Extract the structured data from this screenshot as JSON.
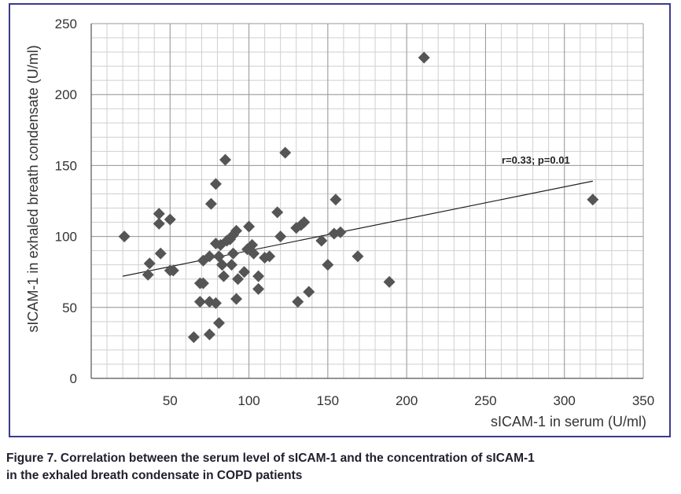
{
  "chart_data": {
    "type": "scatter",
    "xlabel": "sICAM-1 in serum (U/ml)",
    "ylabel": "sICAM-1 in exhaled breath condensate (U/ml)",
    "xlim": [
      0,
      350
    ],
    "ylim": [
      0,
      250
    ],
    "x_ticks": [
      50,
      100,
      150,
      200,
      250,
      300,
      350
    ],
    "y_ticks": [
      0,
      50,
      100,
      150,
      200,
      250
    ],
    "grid": true,
    "minor_grid": true,
    "marker": "diamond",
    "colors": {
      "marker": "#555555",
      "frame": "#3a3a8c",
      "grid_major": "#9a9a9a",
      "grid_minor": "#cfcfcf",
      "trend": "#222222"
    },
    "annotation": "r=0.33; p=0.01",
    "trendline": {
      "x": [
        20,
        318
      ],
      "y": [
        72,
        139
      ]
    },
    "points": [
      {
        "x": 21,
        "y": 100
      },
      {
        "x": 37,
        "y": 81
      },
      {
        "x": 36,
        "y": 73
      },
      {
        "x": 43,
        "y": 116
      },
      {
        "x": 43,
        "y": 109
      },
      {
        "x": 50,
        "y": 112
      },
      {
        "x": 44,
        "y": 88
      },
      {
        "x": 50,
        "y": 76
      },
      {
        "x": 52,
        "y": 76
      },
      {
        "x": 65,
        "y": 29
      },
      {
        "x": 69,
        "y": 67
      },
      {
        "x": 71,
        "y": 67
      },
      {
        "x": 69,
        "y": 54
      },
      {
        "x": 71,
        "y": 83
      },
      {
        "x": 75,
        "y": 86
      },
      {
        "x": 76,
        "y": 123
      },
      {
        "x": 79,
        "y": 137
      },
      {
        "x": 75,
        "y": 54
      },
      {
        "x": 79,
        "y": 53
      },
      {
        "x": 75,
        "y": 31
      },
      {
        "x": 81,
        "y": 39
      },
      {
        "x": 79,
        "y": 95
      },
      {
        "x": 82,
        "y": 94
      },
      {
        "x": 85,
        "y": 154
      },
      {
        "x": 84,
        "y": 72
      },
      {
        "x": 81,
        "y": 86
      },
      {
        "x": 83,
        "y": 80
      },
      {
        "x": 86,
        "y": 97
      },
      {
        "x": 88,
        "y": 98
      },
      {
        "x": 90,
        "y": 101
      },
      {
        "x": 92,
        "y": 104
      },
      {
        "x": 90,
        "y": 88
      },
      {
        "x": 89,
        "y": 80
      },
      {
        "x": 93,
        "y": 70
      },
      {
        "x": 92,
        "y": 56
      },
      {
        "x": 97,
        "y": 75
      },
      {
        "x": 100,
        "y": 107
      },
      {
        "x": 99,
        "y": 91
      },
      {
        "x": 102,
        "y": 94
      },
      {
        "x": 103,
        "y": 88
      },
      {
        "x": 106,
        "y": 72
      },
      {
        "x": 106,
        "y": 63
      },
      {
        "x": 110,
        "y": 85
      },
      {
        "x": 113,
        "y": 86
      },
      {
        "x": 118,
        "y": 117
      },
      {
        "x": 120,
        "y": 100
      },
      {
        "x": 123,
        "y": 159
      },
      {
        "x": 130,
        "y": 106
      },
      {
        "x": 133,
        "y": 108
      },
      {
        "x": 135,
        "y": 110
      },
      {
        "x": 131,
        "y": 54
      },
      {
        "x": 138,
        "y": 61
      },
      {
        "x": 146,
        "y": 97
      },
      {
        "x": 150,
        "y": 80
      },
      {
        "x": 154,
        "y": 102
      },
      {
        "x": 155,
        "y": 126
      },
      {
        "x": 158,
        "y": 103
      },
      {
        "x": 169,
        "y": 86
      },
      {
        "x": 189,
        "y": 68
      },
      {
        "x": 211,
        "y": 226
      },
      {
        "x": 318,
        "y": 126
      }
    ]
  },
  "caption": {
    "line1": "Figure 7. Correlation between the serum level of sICAM-1 and the concentration of sICAM-1",
    "line2": "in the exhaled breath condensate in COPD patients"
  }
}
